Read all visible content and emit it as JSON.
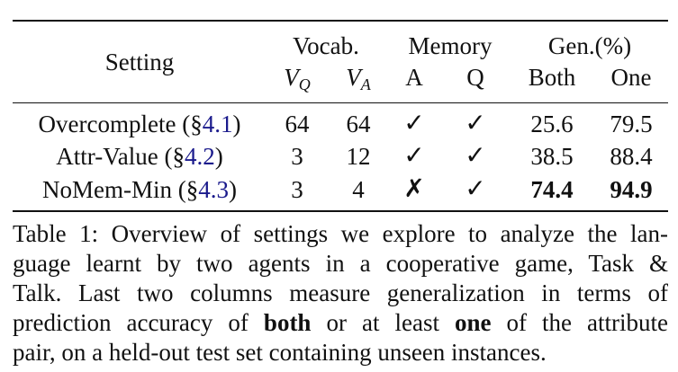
{
  "table": {
    "header": {
      "setting": "Setting",
      "vocab": "Vocab.",
      "memory": "Memory",
      "gen": "Gen.(%)",
      "vq_base": "V",
      "vq_sub": "Q",
      "va_base": "V",
      "va_sub": "A",
      "mem_a": "A",
      "mem_q": "Q",
      "gen_both": "Both",
      "gen_one": "One"
    },
    "rows": [
      {
        "setting": "Overcomplete (§",
        "ref": "4.1",
        "close": ")",
        "vq": "64",
        "va": "64",
        "mem_a": "✓",
        "mem_q": "✓",
        "both": "25.6",
        "one": "79.5"
      },
      {
        "setting": "Attr-Value (§",
        "ref": "4.2",
        "close": ")",
        "vq": "3",
        "va": "12",
        "mem_a": "✓",
        "mem_q": "✓",
        "both": "38.5",
        "one": "88.4"
      },
      {
        "setting": "NoMem-Min (§",
        "ref": "4.3",
        "close": ")",
        "vq": "3",
        "va": "4",
        "mem_a": "✗",
        "mem_q": "✓",
        "both": "74.4",
        "one": "94.9"
      }
    ]
  },
  "caption": {
    "line1": "Table 1: Overview of settings we explore to analyze the lan-",
    "line2": "guage learnt by two agents in a cooperative game, Task &",
    "line3": "Talk.  Last two columns measure generalization in terms of",
    "line4_a": "prediction accuracy of ",
    "line4_b": "both",
    "line4_c": " or at least ",
    "line4_d": "one",
    "line4_e": " of the attribute",
    "line5": "pair, on a held-out test set containing unseen instances."
  }
}
